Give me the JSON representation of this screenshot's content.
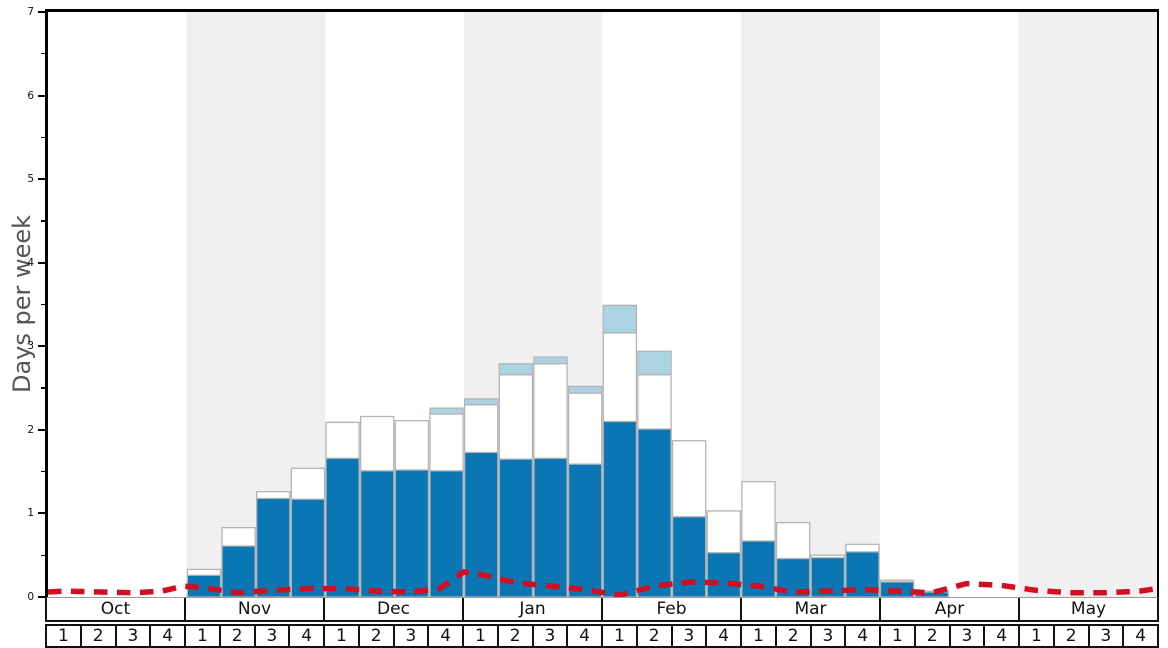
{
  "chart_data": {
    "type": "bar",
    "title": "",
    "ylabel": "Days per week",
    "ylim": [
      0,
      7
    ],
    "yticks": [
      0,
      1,
      2,
      3,
      4,
      5,
      6,
      7
    ],
    "minor_tick_step": 0.5,
    "grid": "off",
    "legend": "none",
    "x_axis": {
      "months": [
        "Oct",
        "Nov",
        "Dec",
        "Jan",
        "Feb",
        "Mar",
        "Apr",
        "May"
      ],
      "weeks": [
        "1",
        "2",
        "3",
        "4"
      ]
    },
    "band_color": "#f0f0f0",
    "banded_months": [
      "Nov",
      "Jan",
      "Mar",
      "May"
    ],
    "bar_border_color": "#b4b4b8",
    "series": [
      {
        "name": "dark-blue-days",
        "color": "#0b76b4",
        "values": [
          0,
          0,
          0,
          0,
          0.26,
          0.61,
          1.18,
          1.17,
          1.66,
          1.51,
          1.52,
          1.51,
          1.73,
          1.65,
          1.66,
          1.59,
          2.1,
          2.01,
          0.96,
          0.53,
          0.67,
          0.46,
          0.47,
          0.54,
          0.18,
          0.06,
          0,
          0,
          0,
          0,
          0,
          0
        ]
      },
      {
        "name": "white-segment-top",
        "color": "#fffffe",
        "values": [
          0,
          0,
          0,
          0,
          0.33,
          0.83,
          1.26,
          1.54,
          2.09,
          2.16,
          2.11,
          2.19,
          2.3,
          2.66,
          2.79,
          2.44,
          3.16,
          2.66,
          1.87,
          1.03,
          1.38,
          0.89,
          0.5,
          0.63,
          0.2,
          0.07,
          0,
          0,
          0,
          0,
          0,
          0
        ]
      },
      {
        "name": "light-blue-cap-top",
        "color": "#abd3e1",
        "values": [
          0,
          0,
          0,
          0,
          0,
          0,
          0,
          0,
          0,
          0,
          0,
          2.26,
          2.37,
          2.79,
          2.87,
          2.52,
          3.49,
          2.94,
          0,
          0,
          0,
          0,
          0,
          0,
          0,
          0,
          0,
          0,
          0,
          0,
          0,
          0
        ]
      }
    ],
    "red_line": {
      "name": "red-dashed-line",
      "color": "#d10f23",
      "width": 5.5,
      "dash": [
        13.5,
        9.5
      ],
      "points_week_units": [
        [
          0,
          0.06
        ],
        [
          0.5,
          0.07
        ],
        [
          1.5,
          0.06
        ],
        [
          2.5,
          0.05
        ],
        [
          3.3,
          0.07
        ],
        [
          3.9,
          0.13
        ],
        [
          4.5,
          0.11
        ],
        [
          5.5,
          0.05
        ],
        [
          6.5,
          0.08
        ],
        [
          7.5,
          0.1
        ],
        [
          8.5,
          0.1
        ],
        [
          9.5,
          0.07
        ],
        [
          10.5,
          0.06
        ],
        [
          11.3,
          0.1
        ],
        [
          12.0,
          0.3
        ],
        [
          12.6,
          0.26
        ],
        [
          13.5,
          0.17
        ],
        [
          14.5,
          0.13
        ],
        [
          15.5,
          0.09
        ],
        [
          16.5,
          0.02
        ],
        [
          17.5,
          0.13
        ],
        [
          18.5,
          0.18
        ],
        [
          19.5,
          0.17
        ],
        [
          20.5,
          0.13
        ],
        [
          21.5,
          0.06
        ],
        [
          22.5,
          0.07
        ],
        [
          23.5,
          0.09
        ],
        [
          24.5,
          0.07
        ],
        [
          25.5,
          0.05
        ],
        [
          26.5,
          0.16
        ],
        [
          27.5,
          0.14
        ],
        [
          28.5,
          0.08
        ],
        [
          29.5,
          0.05
        ],
        [
          30.5,
          0.05
        ],
        [
          31.5,
          0.07
        ],
        [
          32,
          0.1
        ]
      ]
    }
  }
}
